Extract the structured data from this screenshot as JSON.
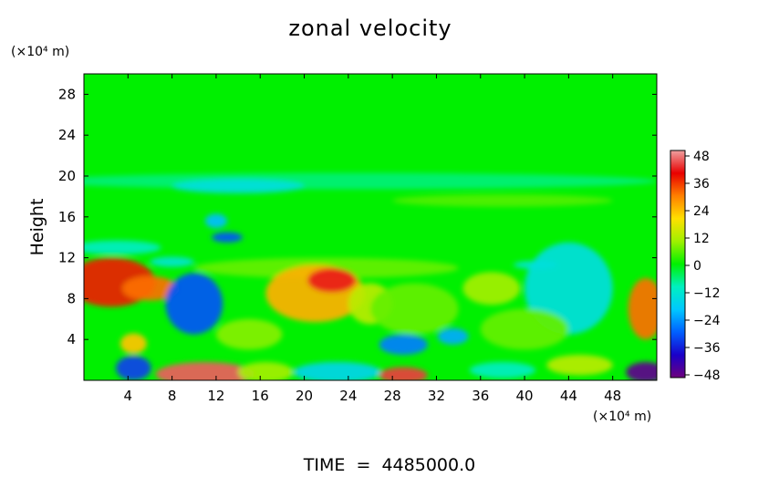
{
  "chart_data": {
    "type": "heatmap",
    "title": "zonal velocity",
    "xlabel": "",
    "ylabel": "Height",
    "x_unit": "(×10⁴ m)",
    "y_unit": "(×10⁴ m)",
    "footer": "TIME  =  4485000.0",
    "xlim": [
      0,
      52
    ],
    "ylim": [
      0,
      30
    ],
    "x_ticks": [
      4,
      8,
      12,
      16,
      20,
      24,
      28,
      32,
      36,
      40,
      44,
      48
    ],
    "y_ticks": [
      4,
      8,
      12,
      16,
      20,
      24,
      28
    ],
    "colorbar": {
      "min": -48,
      "max": 48,
      "ticks": [
        48,
        36,
        24,
        12,
        0,
        -12,
        -24,
        -36,
        -48
      ],
      "colors": [
        "#6e007d",
        "#1a00c8",
        "#0060ff",
        "#00c8ff",
        "#00f0c0",
        "#00f000",
        "#a0f000",
        "#ffe000",
        "#ff8000",
        "#e80000",
        "#f0a0a0"
      ]
    },
    "background_value": 0,
    "features": [
      {
        "x": 24,
        "y": 19.5,
        "rx": 28,
        "ry": 0.8,
        "value": -6
      },
      {
        "x": 14,
        "y": 19.0,
        "rx": 6,
        "ry": 0.7,
        "value": -14
      },
      {
        "x": 38,
        "y": 17.6,
        "rx": 10,
        "ry": 0.6,
        "value": 5
      },
      {
        "x": 12,
        "y": 15.6,
        "rx": 1.0,
        "ry": 0.7,
        "value": -20
      },
      {
        "x": 13,
        "y": 14.0,
        "rx": 1.4,
        "ry": 0.5,
        "value": -30
      },
      {
        "x": 3,
        "y": 13.0,
        "rx": 4,
        "ry": 0.7,
        "value": -10
      },
      {
        "x": 22,
        "y": 11.0,
        "rx": 12,
        "ry": 1.0,
        "value": 6
      },
      {
        "x": 8,
        "y": 11.6,
        "rx": 2,
        "ry": 0.5,
        "value": -12
      },
      {
        "x": 41,
        "y": 11.3,
        "rx": 2,
        "ry": 0.4,
        "value": -12
      },
      {
        "x": 2.5,
        "y": 9.6,
        "rx": 4,
        "ry": 2.4,
        "value": 36
      },
      {
        "x": 6,
        "y": 9.0,
        "rx": 2.5,
        "ry": 1.2,
        "value": 30
      },
      {
        "x": 10,
        "y": 7.5,
        "rx": 2.6,
        "ry": 3.0,
        "value": -30
      },
      {
        "x": 21,
        "y": 8.5,
        "rx": 4.5,
        "ry": 2.8,
        "value": 24
      },
      {
        "x": 22.5,
        "y": 9.8,
        "rx": 2.2,
        "ry": 1.2,
        "value": 40
      },
      {
        "x": 26,
        "y": 7.5,
        "rx": 2,
        "ry": 2,
        "value": 12
      },
      {
        "x": 37,
        "y": 9.0,
        "rx": 2.6,
        "ry": 1.6,
        "value": 10
      },
      {
        "x": 44,
        "y": 9.0,
        "rx": 4,
        "ry": 4.5,
        "value": -14
      },
      {
        "x": 51,
        "y": 7.0,
        "rx": 1.6,
        "ry": 3.0,
        "value": 30
      },
      {
        "x": 30,
        "y": 7.0,
        "rx": 4,
        "ry": 2.5,
        "value": 6
      },
      {
        "x": 4.5,
        "y": 3.6,
        "rx": 1.2,
        "ry": 1.0,
        "value": 22
      },
      {
        "x": 29,
        "y": 3.5,
        "rx": 2.2,
        "ry": 1.0,
        "value": -26
      },
      {
        "x": 33.5,
        "y": 4.3,
        "rx": 1.4,
        "ry": 0.8,
        "value": -22
      },
      {
        "x": 15,
        "y": 4.5,
        "rx": 3,
        "ry": 1.5,
        "value": 8
      },
      {
        "x": 40,
        "y": 5.0,
        "rx": 4,
        "ry": 2,
        "value": 6
      },
      {
        "x": 4.5,
        "y": 1.2,
        "rx": 1.6,
        "ry": 1.2,
        "value": -32
      },
      {
        "x": 11,
        "y": 0.6,
        "rx": 4.5,
        "ry": 1.2,
        "value": 44
      },
      {
        "x": 16.5,
        "y": 0.8,
        "rx": 2.5,
        "ry": 1.0,
        "value": 10
      },
      {
        "x": 23,
        "y": 0.8,
        "rx": 4,
        "ry": 1.0,
        "value": -16
      },
      {
        "x": 29,
        "y": 0.5,
        "rx": 2.2,
        "ry": 0.8,
        "value": 42
      },
      {
        "x": 38,
        "y": 1.0,
        "rx": 3,
        "ry": 0.8,
        "value": -10
      },
      {
        "x": 45,
        "y": 1.5,
        "rx": 3,
        "ry": 1.0,
        "value": 12
      },
      {
        "x": 51,
        "y": 0.8,
        "rx": 1.8,
        "ry": 1.0,
        "value": -46
      }
    ]
  }
}
